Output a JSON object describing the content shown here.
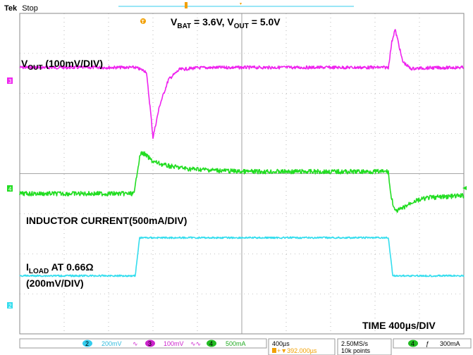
{
  "header": {
    "brand": "Tek",
    "status": "Stop"
  },
  "annotations": {
    "conditions_v_bat": "V",
    "conditions_v_bat_sub": "BAT",
    "conditions_v_bat_val": " = 3.6V, V",
    "conditions_v_out_sub": "OUT",
    "conditions_v_out_val": " = 5.0V",
    "vout_label_main": "V",
    "vout_label_sub": "OUT",
    "vout_label_rest": " (100mV/DIV)",
    "inductor_label": "INDUCTOR CURRENT(500mA/DIV)",
    "iload_label_main": "I",
    "iload_label_sub": "LOAD",
    "iload_label_rest": " AT 0.66Ω",
    "iload_label_line2": "(200mV/DIV)",
    "time_label": "TIME 400µs/DIV"
  },
  "status_bar": {
    "ch2_num": "2",
    "ch2_scale": "200mV",
    "ch3_num": "3",
    "ch3_scale": "100mV",
    "ch4_num": "4",
    "ch4_scale": "500mA",
    "timebase": "400µs",
    "trigger_pos": "+▼392.000µs",
    "sample_rate": "2.50MS/s",
    "record_length": "10k points",
    "trig_channel": "4",
    "trig_level": "300mA"
  },
  "colors": {
    "ch3_vout": "#ee22ee",
    "ch4_inductor": "#22dd22",
    "ch2_iload": "#33ddee",
    "trigger": "#f2a000",
    "grid": "#8a8a8a"
  },
  "chart_data": {
    "type": "line",
    "title": "",
    "x_unit": "div",
    "x_range": [
      0,
      10
    ],
    "y_range": [
      -4,
      4
    ],
    "grid": "10x8 divisions, dotted",
    "series": [
      {
        "name": "VOUT (100mV/DIV)",
        "channel": 3,
        "x": [
          0,
          2.6,
          2.85,
          2.95,
          3.0,
          3.15,
          3.35,
          3.6,
          4.0,
          4.5,
          8.3,
          8.38,
          8.45,
          8.52,
          8.62,
          8.8,
          9.2,
          10
        ],
        "y": [
          2.65,
          2.65,
          2.55,
          1.5,
          0.9,
          1.7,
          2.35,
          2.6,
          2.64,
          2.65,
          2.65,
          3.3,
          3.6,
          3.3,
          2.8,
          2.62,
          2.64,
          2.65
        ]
      },
      {
        "name": "INDUCTOR CURRENT(500mA/DIV)",
        "channel": 4,
        "x": [
          0,
          2.58,
          2.65,
          2.72,
          2.8,
          3.0,
          3.3,
          3.8,
          4.5,
          5.0,
          8.3,
          8.35,
          8.45,
          8.6,
          8.85,
          9.2,
          10
        ],
        "y": [
          -0.5,
          -0.5,
          0.1,
          0.5,
          0.5,
          0.3,
          0.2,
          0.12,
          0.08,
          0.05,
          0.05,
          -0.5,
          -0.95,
          -0.88,
          -0.7,
          -0.6,
          -0.55
        ]
      },
      {
        "name": "ILOAD AT 0.66Ω (200mV/DIV)",
        "channel": 2,
        "x": [
          0,
          2.6,
          2.7,
          8.3,
          8.4,
          10
        ],
        "y": [
          -2.55,
          -2.55,
          -1.6,
          -1.6,
          -2.55,
          -2.55
        ]
      }
    ]
  }
}
